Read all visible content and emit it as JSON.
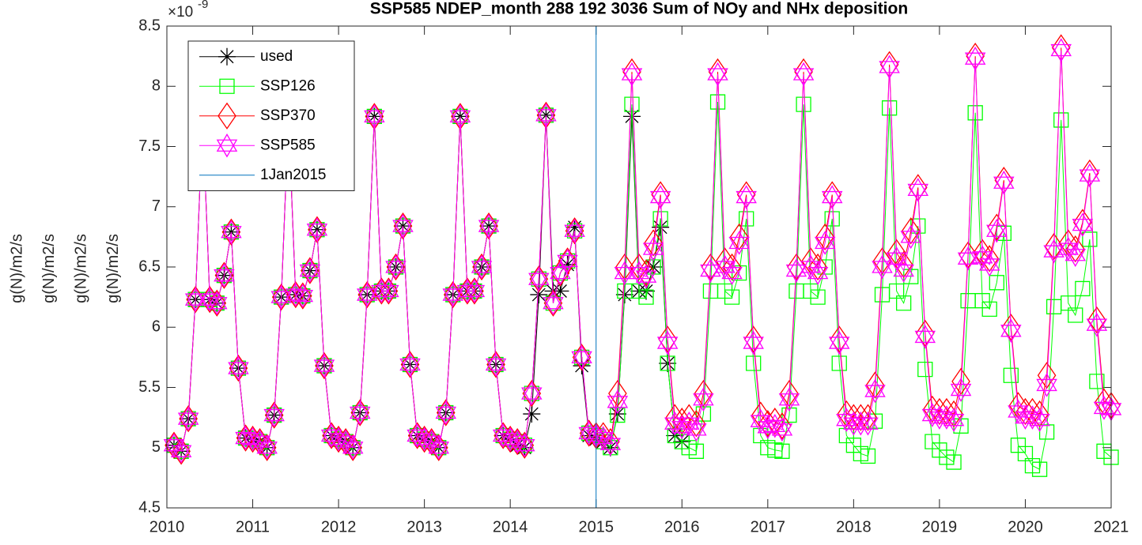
{
  "chart_data": {
    "type": "line",
    "title": "SSP585 NDEP_month  288 192 3036   Sum of NOy and NHx deposition",
    "ylabel": [
      "g(N)/m2/s",
      "g(N)/m2/s",
      "g(N)/m2/s",
      "g(N)/m2/s"
    ],
    "y_multiplier": {
      "base": "×10",
      "exponent": "-9"
    },
    "xlim": [
      2010,
      2021
    ],
    "xticks": [
      2010,
      2011,
      2012,
      2013,
      2014,
      2015,
      2016,
      2017,
      2018,
      2019,
      2020,
      2021
    ],
    "ylim": [
      4.5,
      8.5
    ],
    "yticks": [
      4.5,
      5,
      5.5,
      6,
      6.5,
      7,
      7.5,
      8,
      8.5
    ],
    "grid": false,
    "legend": "upper left",
    "x": [
      2010.083,
      2010.167,
      2010.25,
      2010.333,
      2010.417,
      2010.5,
      2010.583,
      2010.667,
      2010.75,
      2010.833,
      2010.917,
      2011,
      2011.083,
      2011.167,
      2011.25,
      2011.333,
      2011.417,
      2011.5,
      2011.583,
      2011.667,
      2011.75,
      2011.833,
      2011.917,
      2012,
      2012.083,
      2012.167,
      2012.25,
      2012.333,
      2012.417,
      2012.5,
      2012.583,
      2012.667,
      2012.75,
      2012.833,
      2012.917,
      2013,
      2013.083,
      2013.167,
      2013.25,
      2013.333,
      2013.417,
      2013.5,
      2013.583,
      2013.667,
      2013.75,
      2013.833,
      2013.917,
      2014,
      2014.083,
      2014.167,
      2014.25,
      2014.333,
      2014.417,
      2014.5,
      2014.583,
      2014.667,
      2014.75,
      2014.833,
      2014.917,
      2015,
      2015.083,
      2015.167,
      2015.25,
      2015.333,
      2015.417,
      2015.5,
      2015.583,
      2015.667,
      2015.75,
      2015.833,
      2015.917,
      2016,
      2016.083,
      2016.167,
      2016.25,
      2016.333,
      2016.417,
      2016.5,
      2016.583,
      2016.667,
      2016.75,
      2016.833,
      2016.917,
      2017,
      2017.083,
      2017.167,
      2017.25,
      2017.333,
      2017.417,
      2017.5,
      2017.583,
      2017.667,
      2017.75,
      2017.833,
      2017.917,
      2018,
      2018.083,
      2018.167,
      2018.25,
      2018.333,
      2018.417,
      2018.5,
      2018.583,
      2018.667,
      2018.75,
      2018.833,
      2018.917,
      2019,
      2019.083,
      2019.167,
      2019.25,
      2019.333,
      2019.417,
      2019.5,
      2019.583,
      2019.667,
      2019.75,
      2019.833,
      2019.917,
      2020,
      2020.083,
      2020.167,
      2020.25,
      2020.333,
      2020.417,
      2020.5,
      2020.583,
      2020.667,
      2020.75,
      2020.833,
      2020.917,
      2021
    ],
    "series": [
      {
        "name": "used",
        "color": "#000000",
        "marker": "asterisk",
        "values": [
          5.02,
          4.97,
          5.24,
          6.23,
          7.75,
          6.23,
          6.2,
          6.43,
          6.79,
          5.66,
          5.08,
          5.07,
          5.05,
          5.0,
          5.27,
          6.25,
          7.75,
          6.27,
          6.26,
          6.47,
          6.81,
          5.68,
          5.1,
          5.07,
          5.05,
          5.0,
          5.29,
          6.27,
          7.75,
          6.3,
          6.3,
          6.5,
          6.84,
          5.69,
          5.1,
          5.07,
          5.05,
          5.0,
          5.29,
          6.27,
          7.75,
          6.3,
          6.3,
          6.5,
          6.84,
          5.69,
          5.1,
          5.07,
          5.02,
          5.0,
          5.28,
          6.27,
          7.76,
          6.3,
          6.3,
          6.52,
          6.83,
          5.68,
          5.1,
          5.07,
          5.05,
          5.0,
          5.28,
          6.27,
          7.75,
          6.3,
          6.3,
          6.5,
          6.83,
          5.7,
          5.1,
          5.05,
          null,
          null,
          null,
          null,
          null,
          null,
          null,
          null,
          null,
          null,
          null,
          null,
          null,
          null,
          null,
          null,
          null,
          null,
          null,
          null,
          null,
          null,
          null,
          null,
          null,
          null,
          null,
          null,
          null,
          null,
          null,
          null,
          null,
          null,
          null,
          null,
          null,
          null,
          null,
          null,
          null,
          null,
          null,
          null,
          null,
          null,
          null,
          null,
          null,
          null,
          null,
          null,
          null,
          null,
          null,
          null,
          null,
          null,
          null,
          null
        ]
      },
      {
        "name": "SSP126",
        "color": "#00ff00",
        "marker": "square",
        "values": [
          5.02,
          4.97,
          5.24,
          6.23,
          7.75,
          6.23,
          6.2,
          6.43,
          6.79,
          5.66,
          5.08,
          5.07,
          5.05,
          5.0,
          5.27,
          6.25,
          7.75,
          6.27,
          6.26,
          6.47,
          6.81,
          5.68,
          5.1,
          5.07,
          5.05,
          5.0,
          5.29,
          6.27,
          7.75,
          6.3,
          6.3,
          6.5,
          6.84,
          5.69,
          5.1,
          5.07,
          5.05,
          5.0,
          5.29,
          6.27,
          7.75,
          6.3,
          6.3,
          6.5,
          6.84,
          5.69,
          5.1,
          5.07,
          5.05,
          5.02,
          5.45,
          6.4,
          7.76,
          6.2,
          6.45,
          6.55,
          6.8,
          5.75,
          5.12,
          5.1,
          5.05,
          5.0,
          5.27,
          6.3,
          7.85,
          6.3,
          6.25,
          6.5,
          6.9,
          5.7,
          5.1,
          5.05,
          5.0,
          4.97,
          5.28,
          6.3,
          7.87,
          6.3,
          6.25,
          6.45,
          6.9,
          5.7,
          5.1,
          5.0,
          4.98,
          4.97,
          5.27,
          6.3,
          7.85,
          6.3,
          6.25,
          6.5,
          6.9,
          5.7,
          5.1,
          5.02,
          4.95,
          4.93,
          5.22,
          6.27,
          7.82,
          6.3,
          6.2,
          6.42,
          6.84,
          5.65,
          5.05,
          4.98,
          4.92,
          4.88,
          5.18,
          6.22,
          7.78,
          6.22,
          6.15,
          6.37,
          6.78,
          5.6,
          5.02,
          4.95,
          4.85,
          4.82,
          5.13,
          6.17,
          7.72,
          6.2,
          6.1,
          6.32,
          6.73,
          5.55,
          4.97,
          4.92
        ]
      },
      {
        "name": "SSP370",
        "color": "#ff0000",
        "marker": "diamond",
        "values": [
          5.02,
          4.97,
          5.24,
          6.23,
          7.75,
          6.23,
          6.2,
          6.43,
          6.79,
          5.66,
          5.08,
          5.07,
          5.05,
          5.0,
          5.27,
          6.25,
          7.75,
          6.27,
          6.26,
          6.47,
          6.81,
          5.68,
          5.1,
          5.07,
          5.05,
          5.0,
          5.29,
          6.27,
          7.75,
          6.3,
          6.3,
          6.5,
          6.84,
          5.69,
          5.1,
          5.07,
          5.05,
          5.0,
          5.29,
          6.27,
          7.75,
          6.3,
          6.3,
          6.5,
          6.84,
          5.69,
          5.1,
          5.07,
          5.05,
          5.02,
          5.45,
          6.4,
          7.76,
          6.2,
          6.45,
          6.55,
          6.8,
          5.75,
          5.12,
          5.1,
          5.1,
          5.05,
          5.45,
          6.5,
          8.12,
          6.5,
          6.45,
          6.7,
          7.1,
          5.9,
          5.25,
          5.22,
          5.25,
          5.2,
          5.45,
          6.5,
          8.12,
          6.55,
          6.5,
          6.75,
          7.1,
          5.9,
          5.27,
          5.2,
          5.22,
          5.18,
          5.45,
          6.5,
          8.12,
          6.55,
          6.5,
          6.75,
          7.1,
          5.9,
          5.28,
          5.25,
          5.25,
          5.25,
          5.52,
          6.55,
          8.18,
          6.62,
          6.52,
          6.8,
          7.16,
          5.95,
          5.32,
          5.3,
          5.3,
          5.28,
          5.55,
          6.6,
          8.25,
          6.62,
          6.57,
          6.83,
          7.22,
          6.0,
          5.35,
          5.3,
          5.3,
          5.28,
          5.6,
          6.67,
          8.32,
          6.7,
          6.65,
          6.87,
          7.28,
          6.06,
          5.38,
          5.35
        ]
      },
      {
        "name": "SSP585",
        "color": "#ff00ff",
        "marker": "hexagram",
        "values": [
          5.02,
          4.97,
          5.24,
          6.23,
          7.75,
          6.23,
          6.2,
          6.43,
          6.79,
          5.66,
          5.08,
          5.07,
          5.05,
          5.0,
          5.27,
          6.25,
          7.75,
          6.27,
          6.26,
          6.47,
          6.81,
          5.68,
          5.1,
          5.07,
          5.05,
          5.0,
          5.29,
          6.27,
          7.75,
          6.3,
          6.3,
          6.5,
          6.84,
          5.69,
          5.1,
          5.07,
          5.05,
          5.0,
          5.29,
          6.27,
          7.75,
          6.3,
          6.3,
          6.5,
          6.84,
          5.69,
          5.1,
          5.07,
          5.05,
          5.02,
          5.45,
          6.4,
          7.76,
          6.2,
          6.45,
          6.55,
          6.8,
          5.75,
          5.12,
          5.1,
          5.08,
          5.03,
          5.38,
          6.45,
          8.1,
          6.45,
          6.42,
          6.65,
          7.08,
          5.87,
          5.2,
          5.17,
          5.2,
          5.15,
          5.4,
          6.47,
          8.1,
          6.5,
          6.45,
          6.7,
          7.08,
          5.87,
          5.22,
          5.17,
          5.18,
          5.15,
          5.4,
          6.47,
          8.1,
          6.5,
          6.45,
          6.7,
          7.08,
          5.87,
          5.23,
          5.2,
          5.2,
          5.2,
          5.47,
          6.5,
          8.16,
          6.57,
          6.47,
          6.75,
          7.14,
          5.92,
          5.27,
          5.25,
          5.25,
          5.23,
          5.48,
          6.57,
          8.23,
          6.58,
          6.52,
          6.8,
          7.2,
          5.97,
          5.3,
          5.25,
          5.25,
          5.23,
          5.52,
          6.63,
          8.3,
          6.65,
          6.6,
          6.85,
          7.26,
          6.02,
          5.33,
          5.32
        ]
      },
      {
        "name": "1Jan2015",
        "color": "#0072bd",
        "marker": "none",
        "x": [
          2015,
          2015
        ],
        "values": [
          4.5,
          8.5
        ]
      }
    ]
  }
}
